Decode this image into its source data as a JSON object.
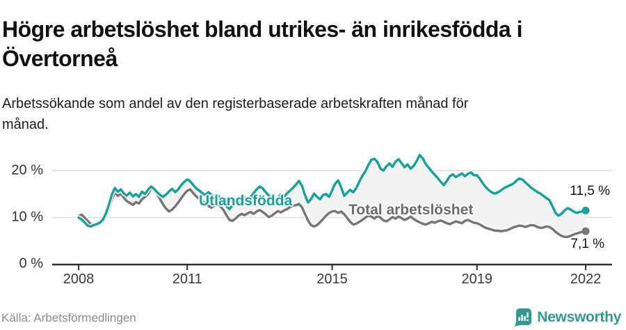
{
  "header": {
    "title": "Högre arbetslöshet bland utrikes- än inrikesfödda i Övertorneå",
    "subtitle": "Arbetssökande som andel av den registerbaserade arbetskraften månad för månad."
  },
  "footer": {
    "source": "Källa: Arbetsförmedlingen",
    "brand": "Newsworthy",
    "brand_icon": "newsworthy-speech-bubble-bar-chart-icon",
    "brand_color": "#2f9a94"
  },
  "chart_data": {
    "type": "line",
    "title": "Högre arbetslöshet bland utrikes- än inrikesfödda i Övertorneå",
    "xlabel": "",
    "ylabel": "",
    "x_start": "2008-01",
    "x_end": "2022-01",
    "x_interval": "monthly",
    "ylim": [
      0,
      25
    ],
    "y_labels": [
      "0 %",
      "10 %",
      "20 %"
    ],
    "y_values": [
      0,
      10,
      20
    ],
    "x_tick_years": [
      2008,
      2011,
      2015,
      2019,
      2022
    ],
    "grid": "horizontal",
    "legend_position": "inline-labels-on-lines",
    "colors": {
      "grid": "#dcdcdc",
      "axis": "#2e2e2e",
      "band_fill": "#f2f2f2"
    },
    "series": [
      {
        "name": "Utlandsfödda",
        "color": "#14a39a",
        "end_label": "11,5 %",
        "end_value": 11.5,
        "values": [
          10.0,
          9.6,
          9.0,
          8.3,
          8.1,
          8.4,
          8.6,
          8.9,
          9.5,
          10.8,
          12.6,
          14.8,
          16.3,
          15.5,
          16.0,
          15.1,
          14.7,
          15.3,
          14.5,
          15.0,
          14.4,
          15.5,
          15.0,
          15.9,
          16.6,
          16.1,
          15.4,
          14.8,
          14.4,
          14.9,
          15.6,
          16.1,
          15.4,
          16.0,
          16.9,
          17.6,
          18.1,
          17.7,
          16.9,
          16.2,
          15.7,
          15.2,
          14.8,
          15.4,
          14.9,
          14.4,
          14.8,
          14.2,
          13.5,
          12.4,
          11.8,
          12.6,
          13.2,
          12.8,
          13.5,
          14.2,
          13.7,
          14.4,
          15.2,
          16.0,
          16.6,
          16.2,
          15.4,
          14.7,
          14.1,
          13.7,
          14.3,
          14.9,
          14.4,
          15.1,
          15.7,
          16.3,
          17.0,
          17.8,
          16.8,
          14.8,
          13.2,
          13.9,
          15.1,
          14.4,
          13.9,
          14.8,
          15.0,
          14.4,
          15.8,
          17.2,
          17.9,
          16.4,
          14.6,
          15.3,
          15.9,
          15.4,
          16.3,
          17.6,
          18.9,
          19.8,
          21.2,
          22.3,
          22.5,
          21.8,
          20.4,
          20.0,
          20.9,
          21.5,
          20.8,
          21.9,
          22.4,
          21.6,
          20.7,
          21.3,
          20.4,
          21.0,
          22.0,
          23.3,
          22.6,
          21.4,
          20.6,
          19.8,
          19.1,
          18.4,
          17.6,
          16.9,
          17.8,
          18.8,
          19.2,
          18.6,
          19.0,
          19.4,
          18.8,
          19.3,
          19.6,
          19.0,
          19.0,
          18.2,
          17.2,
          16.4,
          15.8,
          15.3,
          15.1,
          15.4,
          15.8,
          16.3,
          16.6,
          16.9,
          17.2,
          17.8,
          18.3,
          18.1,
          17.5,
          16.9,
          16.3,
          15.9,
          15.4,
          15.1,
          14.6,
          14.1,
          13.7,
          12.4,
          11.0,
          10.4,
          10.8,
          11.5,
          12.0,
          11.7,
          11.3,
          11.0,
          11.2,
          11.3,
          11.5
        ]
      },
      {
        "name": "Total arbetslöshet",
        "color": "#767676",
        "label_color": "#6b6b6b",
        "end_label": "7,1 %",
        "end_value": 7.1,
        "values": [
          10.3,
          10.6,
          10.0,
          9.3,
          8.6,
          8.4,
          8.5,
          8.7,
          9.2,
          10.2,
          11.8,
          13.8,
          15.3,
          14.6,
          15.1,
          14.2,
          13.5,
          13.1,
          12.7,
          13.3,
          13.0,
          13.9,
          14.4,
          15.0,
          16.2,
          15.8,
          15.1,
          13.9,
          12.8,
          11.9,
          11.3,
          11.7,
          12.4,
          13.2,
          14.1,
          15.0,
          15.7,
          16.0,
          15.2,
          14.5,
          14.0,
          13.5,
          13.0,
          12.5,
          12.1,
          12.6,
          13.1,
          12.4,
          11.6,
          10.5,
          9.5,
          9.3,
          9.8,
          10.4,
          10.8,
          10.5,
          10.9,
          11.2,
          10.8,
          11.3,
          11.6,
          11.2,
          10.7,
          10.1,
          10.4,
          10.9,
          11.4,
          11.1,
          11.5,
          11.8,
          12.2,
          12.6,
          12.6,
          12.9,
          12.2,
          10.8,
          9.4,
          8.4,
          8.1,
          8.4,
          9.0,
          9.7,
          10.4,
          11.0,
          11.3,
          11.4,
          11.0,
          11.3,
          10.7,
          9.9,
          9.1,
          8.5,
          8.7,
          9.1,
          9.5,
          10.0,
          10.4,
          10.2,
          9.8,
          10.3,
          10.0,
          9.4,
          9.2,
          9.6,
          10.1,
          9.8,
          10.2,
          9.9,
          9.5,
          9.8,
          10.2,
          9.7,
          9.3,
          9.0,
          8.7,
          8.5,
          8.8,
          9.1,
          8.9,
          9.2,
          9.4,
          9.1,
          8.8,
          8.6,
          8.9,
          9.2,
          9.0,
          8.8,
          9.3,
          9.5,
          9.2,
          8.9,
          8.8,
          8.5,
          8.1,
          7.8,
          7.6,
          7.4,
          7.2,
          7.2,
          7.1,
          7.2,
          7.3,
          7.6,
          7.9,
          8.1,
          8.3,
          8.2,
          8.0,
          8.2,
          8.4,
          8.3,
          8.0,
          7.8,
          7.9,
          8.1,
          8.0,
          7.6,
          7.0,
          6.5,
          6.1,
          5.9,
          5.9,
          6.1,
          6.4,
          6.6,
          6.8,
          7.0,
          7.1
        ]
      }
    ]
  }
}
